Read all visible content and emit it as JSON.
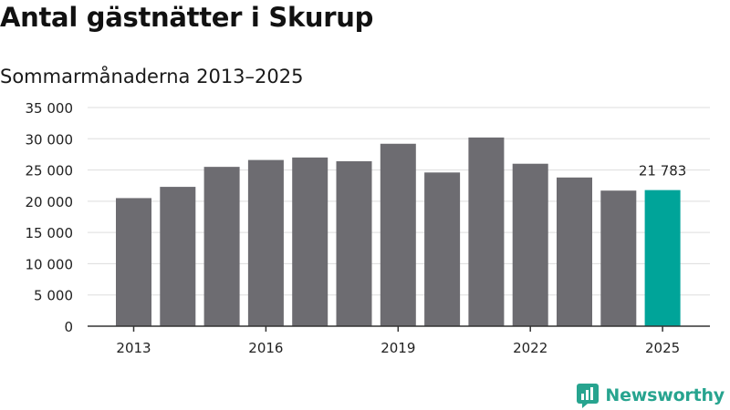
{
  "page": {
    "title": "Antal gästnätter i Skurup",
    "subtitle": "Sommarmånaderna 2013–2025",
    "brand": "Newsworthy"
  },
  "colors": {
    "bar": "#6d6c71",
    "highlight": "#00a499",
    "grid": "#dddddd",
    "axis": "#333333",
    "brand": "#27a48f"
  },
  "chart_data": {
    "type": "bar",
    "categories": [
      "2013",
      "2014",
      "2015",
      "2016",
      "2017",
      "2018",
      "2019",
      "2020",
      "2021",
      "2022",
      "2023",
      "2024",
      "2025"
    ],
    "x_tick_labels": [
      "2013",
      "2016",
      "2019",
      "2022",
      "2025"
    ],
    "values": [
      20500,
      22300,
      25500,
      26600,
      27000,
      26400,
      29200,
      24600,
      30200,
      26000,
      23800,
      21700,
      21783
    ],
    "highlight_index": 12,
    "annotations": [
      {
        "category": "2025",
        "text": "21 783"
      }
    ],
    "y_ticks": [
      0,
      5000,
      10000,
      15000,
      20000,
      25000,
      30000,
      35000
    ],
    "y_tick_labels": [
      "0",
      "5 000",
      "10 000",
      "15 000",
      "20 000",
      "25 000",
      "30 000",
      "35 000"
    ],
    "ylim": [
      0,
      35000
    ],
    "grid": true,
    "legend": "none"
  }
}
